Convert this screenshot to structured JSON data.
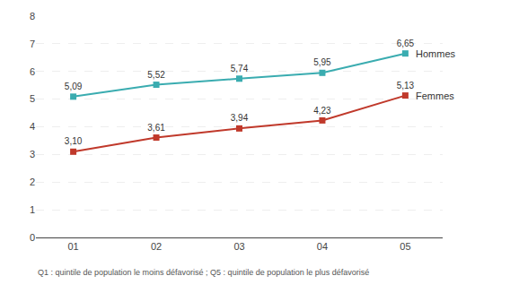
{
  "chart_data": {
    "type": "line",
    "categories": [
      "01",
      "02",
      "03",
      "04",
      "05"
    ],
    "series": [
      {
        "name": "Hommes",
        "color": "#3aacb0",
        "values": [
          5.09,
          5.52,
          5.74,
          5.95,
          6.65
        ],
        "value_labels": [
          "5,09",
          "5,52",
          "5,74",
          "5,95",
          "6,65"
        ]
      },
      {
        "name": "Femmes",
        "color": "#c0392b",
        "values": [
          3.1,
          3.61,
          3.94,
          4.23,
          5.13
        ],
        "value_labels": [
          "3,10",
          "3,61",
          "3,94",
          "4,23",
          "5,13"
        ]
      }
    ],
    "marker": "square",
    "data_labels": true,
    "ylim": [
      0,
      8
    ],
    "yticks": [
      0,
      1,
      2,
      3,
      4,
      5,
      6,
      7,
      8
    ],
    "grid": true,
    "annotations": [
      "Q1 : quintile de population le moins défavorisé ; Q5 : quintile de population le plus défavorisé"
    ]
  }
}
